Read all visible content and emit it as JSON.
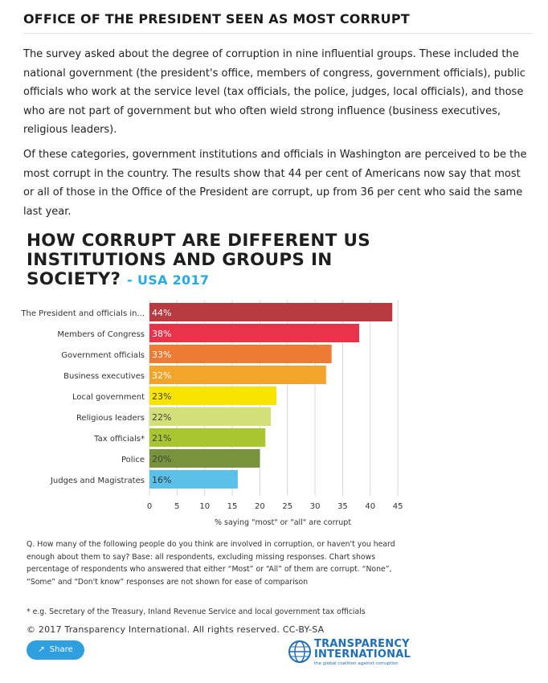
{
  "article": {
    "heading": "OFFICE OF THE PRESIDENT SEEN AS MOST CORRUPT",
    "paragraph1": "The survey asked about the degree of corruption in nine influential groups. These included the national government (the president's office, members of congress, government officials), public officials who work at the service level (tax officials, the police, judges, local officials), and those who are not part of government but who often wield strong influence (business executives, religious leaders).",
    "paragraph2": "Of these categories, government institutions and officials in Washington are perceived to be the most corrupt in the country. The results show that 44 per cent of Americans now say that most or all of those in the Office of the President are corrupt, up from 36 per cent who said the same last year."
  },
  "chart_data": {
    "type": "bar",
    "orientation": "horizontal",
    "title": "HOW CORRUPT ARE DIFFERENT US INSTITUTIONS AND GROUPS IN SOCIETY?",
    "subtitle": "- USA 2017",
    "xlabel": "% saying \"most\" or \"all\" are corrupt",
    "xlim": [
      0,
      46
    ],
    "xticks": [
      "0",
      "5",
      "10",
      "15",
      "20",
      "25",
      "30",
      "35",
      "40",
      "45"
    ],
    "grid": true,
    "categories": [
      "The President and officials in...",
      "Members of Congress",
      "Government officials",
      "Business executives",
      "Local government",
      "Religious leaders",
      "Tax officials*",
      "Police",
      "Judges and Magistrates"
    ],
    "values": [
      44,
      38,
      33,
      32,
      23,
      22,
      21,
      20,
      16
    ],
    "value_labels": [
      "44%",
      "38%",
      "33%",
      "32%",
      "23%",
      "22%",
      "21%",
      "20%",
      "16%"
    ],
    "colors": [
      "#b83b42",
      "#e8334a",
      "#ed7b34",
      "#f3a52b",
      "#f6e400",
      "#d3e07a",
      "#a9c52f",
      "#79933c",
      "#5bc1ea"
    ],
    "label_colors": [
      "#ffffff",
      "#ffffff",
      "#ffffff",
      "#ffffff",
      "#444444",
      "#444444",
      "#444444",
      "#444444",
      "#333333"
    ]
  },
  "notes": {
    "question": "Q. How many of the following people do you think are involved in corruption, or haven't you heard enough about them to say? Base: all respondents, excluding missing responses. Chart shows percentage of respondents who answered that either “Most” or “All” of them are corrupt. “None”, “Some” and “Don't know” responses are not shown for ease of comparison",
    "footnote": "* e.g. Secretary of the Treasury, Inland Revenue Service and local government tax officials",
    "copyright": "© 2017 Transparency International. All rights reserved. CC-BY-SA"
  },
  "share": {
    "label": "Share",
    "icon": "share-icon"
  },
  "logo": {
    "line1": "TRANSPARENCY",
    "line2": "INTERNATIONAL",
    "tagline": "the global coalition against corruption",
    "color": "#1f6fb5"
  }
}
